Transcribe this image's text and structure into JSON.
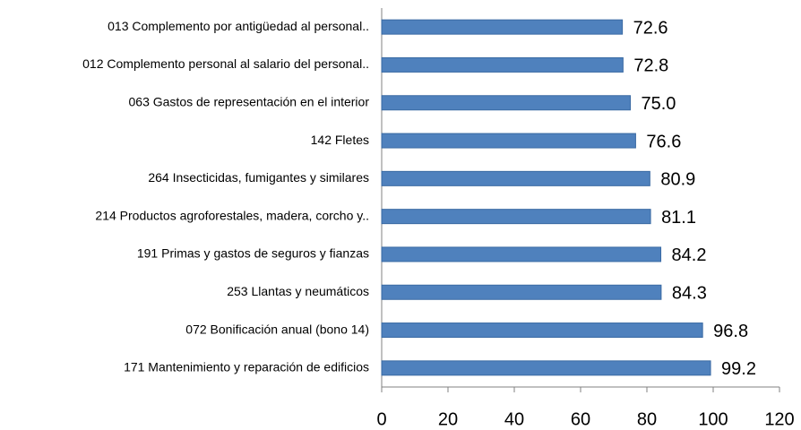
{
  "chart_data": {
    "type": "barh",
    "categories": [
      "013 Complemento por antigüedad al personal..",
      "012 Complemento personal al salario del personal..",
      "063 Gastos de representación en el interior",
      "142 Fletes",
      "264 Insecticidas, fumigantes y similares",
      "214 Productos agroforestales, madera, corcho y..",
      "191 Primas y gastos de seguros y fianzas",
      "253 Llantas y neumáticos",
      "072 Bonificación anual (bono 14)",
      "171 Mantenimiento y reparación de edificios"
    ],
    "values": [
      72.6,
      72.8,
      75,
      76.6,
      80.9,
      81.1,
      84.2,
      84.3,
      96.8,
      99.2
    ],
    "value_labels": [
      "72.6",
      "72.8",
      "75.0",
      "76.6",
      "80.9",
      "81.1",
      "84.2",
      "84.3",
      "96.8",
      "99.2"
    ],
    "color": "#4f81bd",
    "xlim": [
      0,
      120
    ],
    "xticks": [
      0,
      20,
      40,
      60,
      80,
      100,
      120
    ],
    "grid": false
  }
}
